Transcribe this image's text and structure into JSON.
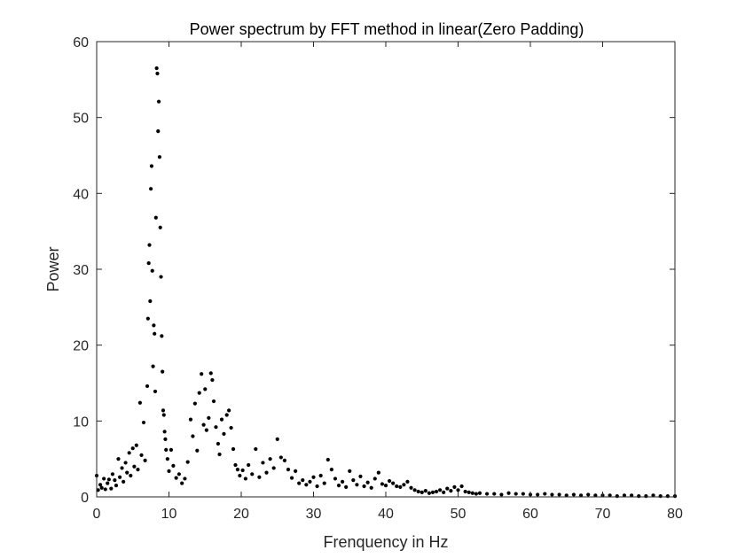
{
  "chart_data": {
    "type": "scatter",
    "title": "Power spectrum by FFT method in linear(Zero Padding)",
    "xlabel": "Frenquency in Hz",
    "ylabel": "Power",
    "xlim": [
      0,
      80
    ],
    "ylim": [
      0,
      60
    ],
    "xticks": [
      0,
      10,
      20,
      30,
      40,
      50,
      60,
      70,
      80
    ],
    "yticks": [
      0,
      10,
      20,
      30,
      40,
      50,
      60
    ],
    "xtick_labels": [
      "0",
      "10",
      "20",
      "30",
      "40",
      "50",
      "60",
      "70",
      "80"
    ],
    "ytick_labels": [
      "0",
      "10",
      "20",
      "30",
      "40",
      "50",
      "60"
    ],
    "grid": false,
    "legend": "none",
    "marker_color": "#000000",
    "series": [
      {
        "x": [
          0.0,
          0.2,
          0.5,
          0.7,
          1.0,
          1.2,
          1.5,
          1.7,
          2.0,
          2.2,
          2.5,
          2.7,
          3.0,
          3.2,
          3.5,
          3.7,
          4.0,
          4.2,
          4.5,
          4.7,
          5.0,
          5.2,
          5.5,
          5.7,
          6.0,
          6.2,
          6.5,
          6.7,
          7.0,
          7.1,
          7.2,
          7.3,
          7.4,
          7.5,
          7.6,
          7.7,
          7.8,
          7.9,
          8.0,
          8.1,
          8.2,
          8.3,
          8.4,
          8.5,
          8.6,
          8.7,
          8.8,
          8.9,
          9.0,
          9.1,
          9.2,
          9.3,
          9.4,
          9.5,
          9.6,
          9.8,
          10.0,
          10.3,
          10.6,
          11.0,
          11.4,
          11.8,
          12.2,
          12.6,
          13.0,
          13.3,
          13.6,
          13.9,
          14.2,
          14.5,
          14.8,
          15.0,
          15.2,
          15.5,
          15.8,
          16.0,
          16.2,
          16.5,
          16.8,
          17.0,
          17.3,
          17.6,
          18.0,
          18.3,
          18.6,
          18.9,
          19.2,
          19.5,
          19.8,
          20.2,
          20.6,
          21.0,
          21.5,
          22.0,
          22.5,
          23.0,
          23.5,
          24.0,
          24.5,
          25.0,
          25.5,
          26.0,
          26.5,
          27.0,
          27.5,
          28.0,
          28.5,
          29.0,
          29.5,
          30.0,
          30.5,
          31.0,
          31.5,
          32.0,
          32.5,
          33.0,
          33.5,
          34.0,
          34.5,
          35.0,
          35.5,
          36.0,
          36.5,
          37.0,
          37.5,
          38.0,
          38.5,
          39.0,
          39.5,
          40.0,
          40.5,
          41.0,
          41.5,
          42.0,
          42.5,
          43.0,
          43.5,
          44.0,
          44.5,
          45.0,
          45.5,
          46.0,
          46.5,
          47.0,
          47.5,
          48.0,
          48.5,
          49.0,
          49.5,
          50.0,
          50.5,
          51.0,
          51.5,
          52.0,
          52.5,
          53.0,
          54.0,
          55.0,
          56.0,
          57.0,
          58.0,
          59.0,
          60.0,
          61.0,
          62.0,
          63.0,
          64.0,
          65.0,
          66.0,
          67.0,
          68.0,
          69.0,
          70.0,
          71.0,
          72.0,
          73.0,
          74.0,
          75.0,
          76.0,
          77.0,
          78.0,
          79.0,
          80.0
        ],
        "y": [
          2.8,
          0.9,
          1.6,
          1.2,
          2.4,
          1.0,
          1.8,
          2.3,
          1.1,
          3.0,
          2.2,
          1.5,
          5.0,
          2.6,
          3.8,
          2.0,
          4.5,
          3.2,
          5.8,
          2.8,
          6.4,
          4.0,
          6.8,
          3.6,
          12.4,
          5.5,
          9.8,
          4.8,
          14.6,
          23.5,
          30.8,
          33.2,
          25.8,
          40.6,
          43.6,
          29.8,
          17.2,
          22.6,
          21.5,
          13.9,
          36.8,
          56.5,
          55.8,
          48.2,
          52.1,
          44.8,
          35.5,
          29.0,
          21.2,
          16.5,
          11.4,
          10.8,
          8.6,
          7.6,
          6.2,
          5.0,
          3.4,
          6.2,
          4.1,
          2.5,
          3.0,
          1.8,
          2.4,
          4.6,
          10.2,
          8.0,
          12.3,
          6.1,
          13.7,
          16.2,
          9.5,
          14.2,
          8.8,
          10.4,
          16.3,
          15.4,
          12.6,
          9.2,
          7.0,
          5.6,
          10.2,
          8.3,
          10.8,
          11.4,
          9.1,
          6.3,
          4.2,
          3.6,
          2.8,
          3.5,
          2.4,
          4.2,
          3.0,
          6.3,
          2.6,
          4.5,
          3.2,
          5.0,
          3.8,
          7.6,
          5.2,
          4.8,
          3.6,
          2.5,
          3.4,
          1.8,
          2.2,
          1.6,
          2.0,
          2.6,
          1.4,
          2.8,
          1.8,
          4.9,
          3.6,
          2.4,
          1.5,
          2.0,
          1.3,
          3.4,
          2.2,
          1.6,
          2.7,
          1.4,
          1.9,
          1.2,
          2.4,
          3.2,
          1.7,
          1.5,
          2.1,
          1.8,
          1.4,
          1.3,
          1.6,
          2.0,
          1.2,
          0.9,
          0.7,
          0.6,
          0.8,
          0.5,
          0.6,
          0.7,
          0.9,
          0.6,
          1.1,
          0.8,
          1.3,
          0.9,
          1.4,
          0.7,
          0.6,
          0.5,
          0.4,
          0.5,
          0.4,
          0.4,
          0.3,
          0.5,
          0.4,
          0.4,
          0.3,
          0.3,
          0.4,
          0.3,
          0.3,
          0.2,
          0.3,
          0.2,
          0.3,
          0.2,
          0.2,
          0.2,
          0.1,
          0.2,
          0.2,
          0.1,
          0.1,
          0.2,
          0.1,
          0.1,
          0.1
        ]
      }
    ]
  }
}
